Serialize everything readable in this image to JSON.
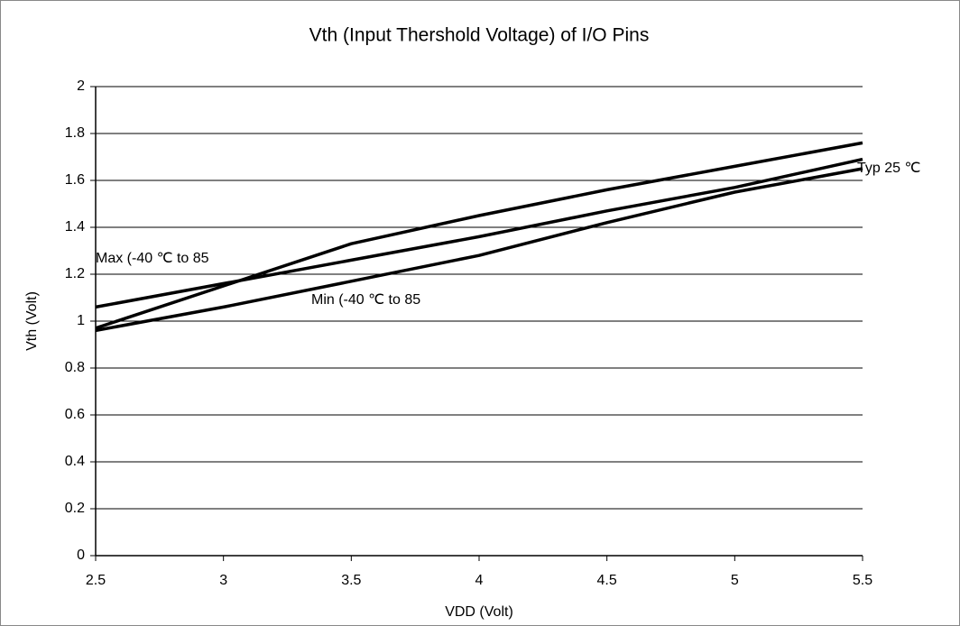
{
  "chart_data": {
    "type": "line",
    "title": "Vth  (Input Thershold Voltage) of I/O Pins",
    "x_label": "VDD  (Volt)",
    "y_label": "Vth (Volt)",
    "x": [
      2.5,
      3,
      3.5,
      4,
      4.5,
      5,
      5.5
    ],
    "series": [
      {
        "name": "Max (-40 ℃ to 85",
        "color": "#000000",
        "values": [
          0.97,
          1.15,
          1.33,
          1.45,
          1.56,
          1.66,
          1.76
        ]
      },
      {
        "name": "Typ 25 ℃",
        "color": "#000000",
        "values": [
          1.06,
          1.16,
          1.26,
          1.36,
          1.47,
          1.57,
          1.69
        ]
      },
      {
        "name": "Min (-40 ℃ to 85",
        "color": "#000000",
        "values": [
          0.96,
          1.06,
          1.17,
          1.28,
          1.42,
          1.55,
          1.65
        ]
      }
    ],
    "xlim": [
      2.5,
      5.5
    ],
    "xticks": [
      2.5,
      3,
      3.5,
      4,
      4.5,
      5,
      5.5
    ],
    "ylim": [
      0,
      2
    ],
    "yticks": [
      0,
      0.2,
      0.4,
      0.6,
      0.8,
      1,
      1.2,
      1.4,
      1.6,
      1.8,
      2
    ],
    "grid": true
  }
}
